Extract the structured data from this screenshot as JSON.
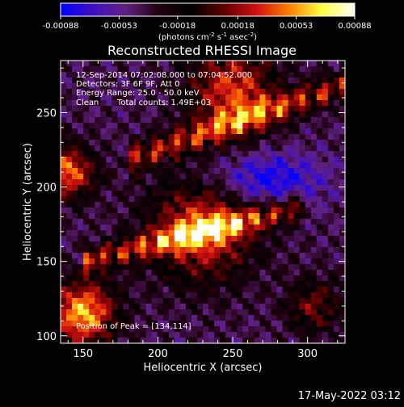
{
  "chart_data": {
    "type": "heatmap",
    "title": "Reconstructed RHESSI Image",
    "xlabel": "Heliocentric X (arcsec)",
    "ylabel": "Heliocentric Y (arcsec)",
    "xlim": [
      135,
      325
    ],
    "ylim": [
      95,
      285
    ],
    "x_ticks": [
      150,
      200,
      250,
      300
    ],
    "y_ticks": [
      100,
      150,
      200,
      250
    ],
    "x_tick_labels": [
      "150",
      "200",
      "250",
      "300"
    ],
    "y_tick_labels": [
      "100",
      "150",
      "200",
      "250"
    ],
    "colorbar": {
      "range": [
        -0.00088,
        0.00088
      ],
      "tick_values": [
        -0.00088,
        -0.00053,
        -0.00018,
        0.00018,
        0.00053,
        0.00088
      ],
      "tick_labels": [
        "-0.00088",
        "-0.00053",
        "-0.00018",
        "0.00018",
        "0.00053",
        "0.00088"
      ],
      "units_line1": "(photons cm",
      "units_sup1": "-2",
      "units_mid1": " s",
      "units_sup2": "-1",
      "units_mid2": " asec",
      "units_sup3": "-2",
      "units_end": ")",
      "colors": [
        "#0000ff",
        "#4010c0",
        "#602080",
        "#200010",
        "#000000",
        "#600000",
        "#d01010",
        "#ff8000",
        "#ffff40",
        "#ffffff"
      ]
    },
    "annotations": {
      "time_range": "12-Sep-2014 07:02:08.000 to 07:04:52.000",
      "detectors": "Detectors: 3F 6F 9F, Att 0",
      "energy": "Energy Range: 25.0 - 50.0 keV",
      "clean": "Clean",
      "counts": "Total counts: 1.49E+03",
      "peak": "Position of Peak = [134,114]"
    },
    "peak_position": [
      134,
      114
    ],
    "bright_features": [
      {
        "x": 150,
        "y": 115,
        "width": 22,
        "intensity": 1.0
      },
      {
        "x": 140,
        "y": 210,
        "width": 18,
        "intensity": 0.85
      },
      {
        "x": 250,
        "y": 265,
        "width": 30,
        "intensity": 0.75
      },
      {
        "x": 230,
        "y": 172,
        "width": 35,
        "intensity": 0.8
      },
      {
        "x": 305,
        "y": 120,
        "width": 18,
        "intensity": 0.5
      }
    ]
  },
  "footer": {
    "timestamp": "17-May-2022 03:12"
  }
}
